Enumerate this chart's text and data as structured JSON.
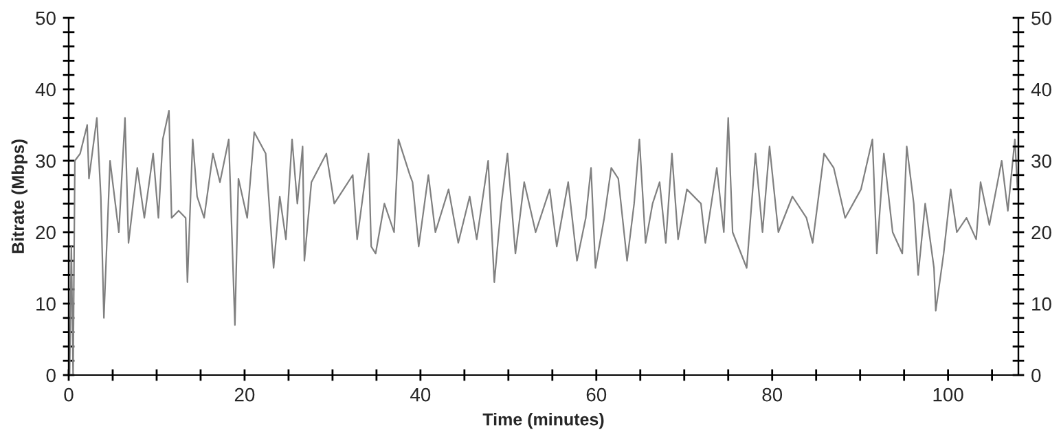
{
  "chart_data": {
    "type": "line",
    "xlabel": "Time (minutes)",
    "ylabel": "Bitrate (Mbps)",
    "xlim": [
      0,
      108
    ],
    "xticks": [
      0,
      {
        "value": 5,
        "label": null
      },
      {
        "value": 10,
        "label": null
      },
      {
        "value": 15,
        "label": null
      },
      20,
      {
        "value": 25,
        "label": null
      },
      {
        "value": 30,
        "label": null
      },
      {
        "value": 35,
        "label": null
      },
      40,
      {
        "value": 45,
        "label": null
      },
      {
        "value": 50,
        "label": null
      },
      {
        "value": 55,
        "label": null
      },
      60,
      {
        "value": 65,
        "label": null
      },
      {
        "value": 70,
        "label": null
      },
      {
        "value": 75,
        "label": null
      },
      80,
      {
        "value": 85,
        "label": null
      },
      {
        "value": 90,
        "label": null
      },
      {
        "value": 95,
        "label": null
      },
      100,
      {
        "value": 105,
        "label": null
      }
    ],
    "ylim": [
      0,
      50
    ],
    "yticks": [
      0,
      {
        "value": 2,
        "label": null
      },
      {
        "value": 4,
        "label": null
      },
      {
        "value": 6,
        "label": null
      },
      {
        "value": 8,
        "label": null
      },
      10,
      {
        "value": 12,
        "label": null
      },
      {
        "value": 14,
        "label": null
      },
      {
        "value": 16,
        "label": null
      },
      {
        "value": 18,
        "label": null
      },
      20,
      {
        "value": 22,
        "label": null
      },
      {
        "value": 24,
        "label": null
      },
      {
        "value": 26,
        "label": null
      },
      {
        "value": 28,
        "label": null
      },
      30,
      {
        "value": 32,
        "label": null
      },
      {
        "value": 34,
        "label": null
      },
      {
        "value": 36,
        "label": null
      },
      {
        "value": 38,
        "label": null
      },
      40,
      {
        "value": 42,
        "label": null
      },
      {
        "value": 44,
        "label": null
      },
      {
        "value": 46,
        "label": null
      },
      {
        "value": 48,
        "label": null
      },
      50
    ],
    "y2lim": [
      0,
      50
    ],
    "y2ticks": [
      0,
      {
        "value": 2,
        "label": null
      },
      {
        "value": 4,
        "label": null
      },
      {
        "value": 6,
        "label": null
      },
      {
        "value": 8,
        "label": null
      },
      10,
      {
        "value": 12,
        "label": null
      },
      {
        "value": 14,
        "label": null
      },
      {
        "value": 16,
        "label": null
      },
      {
        "value": 18,
        "label": null
      },
      20,
      {
        "value": 22,
        "label": null
      },
      {
        "value": 24,
        "label": null
      },
      {
        "value": 26,
        "label": null
      },
      {
        "value": 28,
        "label": null
      },
      30,
      {
        "value": 32,
        "label": null
      },
      {
        "value": 34,
        "label": null
      },
      {
        "value": 36,
        "label": null
      },
      {
        "value": 38,
        "label": null
      },
      40,
      {
        "value": 42,
        "label": null
      },
      {
        "value": 44,
        "label": null
      },
      {
        "value": 46,
        "label": null
      },
      {
        "value": 48,
        "label": null
      },
      50
    ],
    "grid": false,
    "legend": false,
    "marker": "none",
    "line_style": "solid",
    "series": [
      {
        "color": "#808080",
        "x": [
          0.1,
          0.3,
          0.5,
          0.7,
          1.3,
          2.1,
          2.3,
          3.2,
          3.65,
          4,
          4.7,
          5.7,
          6.4,
          6.8,
          7.8,
          8.6,
          9.6,
          10.2,
          10.7,
          11.4,
          11.7,
          12.5,
          13.3,
          13.5,
          14.1,
          14.6,
          15.4,
          16.4,
          17.2,
          18.2,
          18.9,
          19.3,
          20.3,
          21.1,
          22.4,
          23.3,
          24,
          24.7,
          25.4,
          26,
          26.6,
          26.8,
          27.6,
          29.3,
          30.2,
          32.3,
          32.8,
          34.1,
          34.4,
          34.9,
          35.9,
          37,
          37.5,
          38.8,
          39.1,
          39.8,
          40.9,
          41.7,
          43.2,
          44.3,
          45.6,
          46.4,
          47.7,
          48.4,
          49.2,
          49.9,
          50.8,
          51.8,
          53.1,
          54.7,
          55.5,
          56.8,
          57.8,
          58.8,
          59.4,
          59.9,
          60.9,
          61.7,
          62.5,
          63.5,
          64.3,
          64.9,
          65.6,
          66.4,
          67.2,
          67.9,
          68.6,
          69.3,
          70.3,
          71.9,
          72.4,
          73.7,
          74.5,
          75,
          75.5,
          77.1,
          78.1,
          78.9,
          79.7,
          80.7,
          82.3,
          83.9,
          84.6,
          85.9,
          87,
          88.3,
          90.1,
          91.4,
          91.9,
          92.7,
          93.7,
          94.8,
          95.3,
          96.1,
          96.6,
          97.4,
          98.4,
          98.6,
          99.5,
          100.3,
          101,
          102.1,
          103.2,
          103.7,
          104.7,
          106.1,
          106.8,
          107.6,
          107.9
        ],
        "values": [
          0,
          18,
          0,
          30,
          31,
          35,
          27.5,
          36,
          25,
          8,
          30,
          20,
          36,
          18.5,
          29,
          22,
          31,
          22,
          33,
          37,
          22,
          23,
          22,
          13,
          33,
          25,
          22,
          31,
          27,
          33,
          7,
          27.5,
          22,
          34,
          31,
          15,
          25,
          19,
          33,
          24,
          32,
          16,
          27,
          31,
          24,
          28,
          19,
          31,
          18,
          17,
          24,
          20,
          33,
          28,
          27,
          18,
          28,
          20,
          26,
          18.5,
          25,
          19,
          30,
          13,
          24,
          31,
          17,
          27,
          20,
          26,
          18,
          27,
          16,
          22,
          29,
          15,
          22,
          29,
          27.5,
          16,
          24,
          33,
          18.5,
          24,
          27,
          18.5,
          31,
          19,
          26,
          24,
          18.5,
          29,
          20,
          36,
          20,
          15,
          31,
          20,
          32,
          20,
          25,
          22,
          18.5,
          31,
          29,
          22,
          26,
          33,
          17,
          31,
          20,
          17,
          32,
          24,
          14,
          24,
          15,
          9,
          17,
          26,
          20,
          22,
          19,
          27,
          21,
          30,
          23,
          33,
          26
        ]
      }
    ]
  }
}
